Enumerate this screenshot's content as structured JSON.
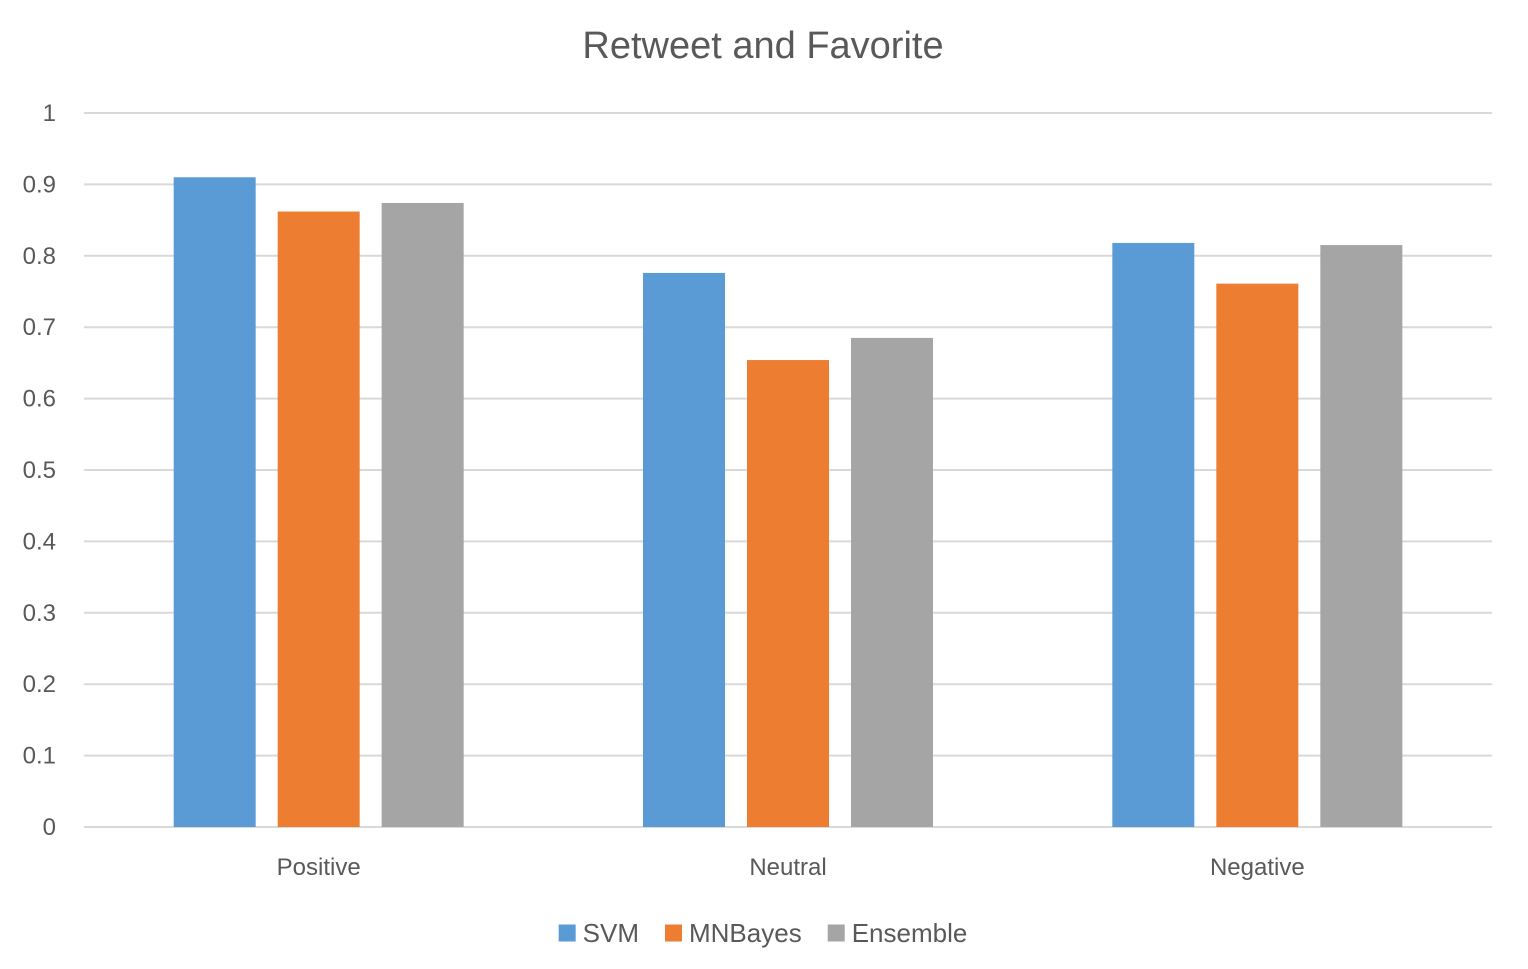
{
  "chart_data": {
    "type": "bar",
    "title": "Retweet and Favorite",
    "xlabel": "",
    "ylabel": "",
    "categories": [
      "Positive",
      "Neutral",
      "Negative"
    ],
    "series": [
      {
        "name": "SVM",
        "color": "#5b9bd5",
        "values": [
          0.91,
          0.776,
          0.818
        ]
      },
      {
        "name": "MNBayes",
        "color": "#ed7d31",
        "values": [
          0.862,
          0.654,
          0.761
        ]
      },
      {
        "name": "Ensemble",
        "color": "#a5a5a5",
        "values": [
          0.874,
          0.685,
          0.815
        ]
      }
    ],
    "ylim": [
      0,
      1
    ],
    "yticks": [
      "0",
      "0.1",
      "0.2",
      "0.3",
      "0.4",
      "0.5",
      "0.6",
      "0.7",
      "0.8",
      "0.9",
      "1"
    ],
    "grid": true,
    "legend_position": "bottom"
  }
}
